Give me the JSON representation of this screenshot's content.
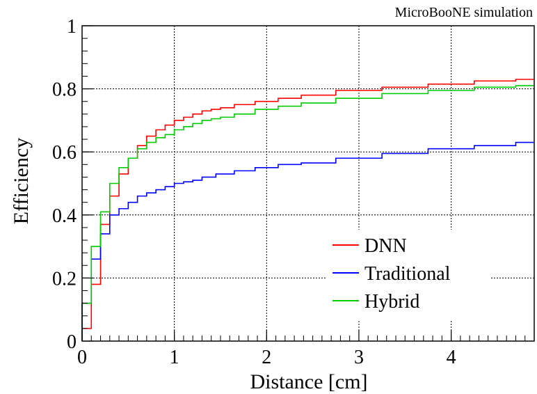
{
  "chart_data": {
    "type": "line",
    "title": "MicroBooNE simulation",
    "xlabel": "Distance [cm]",
    "ylabel": "Efficiency",
    "xlim": [
      0,
      4.9
    ],
    "ylim": [
      0,
      1
    ],
    "xticks": [
      0,
      1,
      2,
      3,
      4
    ],
    "yticks": [
      0,
      0.2,
      0.4,
      0.6,
      0.8,
      1
    ],
    "xtick_labels": [
      "0",
      "1",
      "2",
      "3",
      "4"
    ],
    "ytick_labels": [
      "0",
      "0.2",
      "0.4",
      "0.6",
      "0.8",
      "1"
    ],
    "grid": true,
    "legend_position": "lower-right",
    "step_histogram": true,
    "series": [
      {
        "name": "DNN",
        "color": "#ff0000",
        "x": [
          0.05,
          0.15,
          0.25,
          0.35,
          0.45,
          0.55,
          0.65,
          0.75,
          0.85,
          0.95,
          1.05,
          1.15,
          1.25,
          1.35,
          1.45,
          1.55,
          1.75,
          2.0,
          2.25,
          2.5,
          3.0,
          3.5,
          4.0,
          4.5,
          4.9
        ],
        "y": [
          0.04,
          0.18,
          0.37,
          0.46,
          0.53,
          0.58,
          0.62,
          0.65,
          0.67,
          0.685,
          0.7,
          0.71,
          0.72,
          0.73,
          0.735,
          0.74,
          0.75,
          0.76,
          0.77,
          0.78,
          0.795,
          0.805,
          0.815,
          0.825,
          0.83
        ]
      },
      {
        "name": "Traditional",
        "color": "#0000ff",
        "x": [
          0.05,
          0.15,
          0.25,
          0.35,
          0.45,
          0.55,
          0.65,
          0.75,
          0.85,
          0.95,
          1.05,
          1.15,
          1.25,
          1.35,
          1.55,
          1.75,
          2.0,
          2.25,
          2.5,
          3.0,
          3.5,
          4.0,
          4.5,
          4.9
        ],
        "y": [
          0.12,
          0.26,
          0.34,
          0.4,
          0.42,
          0.44,
          0.46,
          0.47,
          0.48,
          0.49,
          0.5,
          0.505,
          0.51,
          0.52,
          0.53,
          0.54,
          0.55,
          0.56,
          0.565,
          0.58,
          0.595,
          0.61,
          0.62,
          0.63
        ]
      },
      {
        "name": "Hybrid",
        "color": "#00cc00",
        "x": [
          0.05,
          0.15,
          0.25,
          0.35,
          0.45,
          0.55,
          0.65,
          0.75,
          0.85,
          0.95,
          1.05,
          1.15,
          1.25,
          1.35,
          1.45,
          1.55,
          1.75,
          2.0,
          2.25,
          2.5,
          3.0,
          3.5,
          4.0,
          4.5,
          4.9
        ],
        "y": [
          0.12,
          0.3,
          0.41,
          0.5,
          0.55,
          0.58,
          0.61,
          0.63,
          0.645,
          0.655,
          0.67,
          0.68,
          0.69,
          0.7,
          0.705,
          0.71,
          0.72,
          0.735,
          0.745,
          0.755,
          0.77,
          0.785,
          0.795,
          0.805,
          0.81
        ]
      }
    ]
  }
}
